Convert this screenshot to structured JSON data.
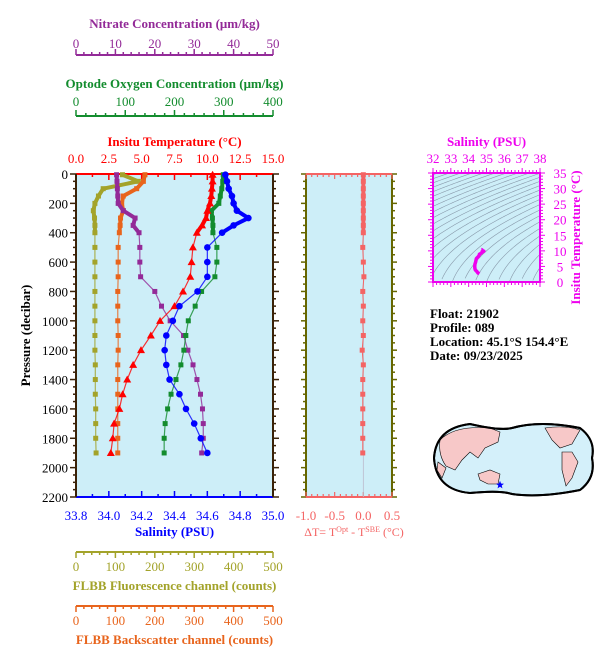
{
  "colors": {
    "temperature": "#ff0000",
    "salinity": "#0000ff",
    "oxygen": "#138c2e",
    "nitrate": "#932a98",
    "fluorescence": "#a3a32a",
    "backscatter": "#e8641c",
    "delta_t": "#f46464",
    "ts_inset": "#ee00ee",
    "plot_bg": "#cdeef8",
    "frame": "#3a2208",
    "delta_frame": "#666600",
    "land": "#f7c8c8",
    "ocean": "#d4f0fa"
  },
  "info": {
    "float": "Float:  21902",
    "profile": "Profile:  089",
    "location": "Location:  45.1°S  154.4°E",
    "date": "Date:  09/23/2025"
  },
  "chart_data": [
    {
      "type": "line",
      "ylabel": "Pressure (decibar)",
      "ylim": [
        2200,
        0
      ],
      "yticks": [
        "0",
        "200",
        "400",
        "600",
        "800",
        "1000",
        "1200",
        "1400",
        "1600",
        "1800",
        "2000",
        "2200"
      ],
      "grid": false,
      "pressure": [
        5,
        50,
        100,
        150,
        200,
        250,
        300,
        350,
        400,
        500,
        600,
        700,
        800,
        900,
        1000,
        1100,
        1200,
        1300,
        1400,
        1500,
        1600,
        1700,
        1800,
        1900
      ],
      "axes": {
        "nitrate": {
          "label": "Nitrate Concentration (μm/kg)",
          "range": [
            0,
            50
          ],
          "ticks": [
            "0",
            "10",
            "20",
            "30",
            "40",
            "50"
          ]
        },
        "oxygen": {
          "label": "Optode Oxygen Concentration (μm/kg)",
          "range": [
            0,
            400
          ],
          "ticks": [
            "0",
            "100",
            "200",
            "300",
            "400"
          ]
        },
        "temperature": {
          "label": "Insitu Temperature (°C)",
          "range": [
            0,
            15
          ],
          "ticks": [
            "0.0",
            "2.5",
            "5.0",
            "7.5",
            "10.0",
            "12.5",
            "15.0"
          ]
        },
        "salinity": {
          "label": "Salinity (PSU)",
          "range": [
            33.8,
            35.0
          ],
          "ticks": [
            "33.8",
            "34.0",
            "34.2",
            "34.4",
            "34.6",
            "34.8",
            "35.0"
          ]
        },
        "fluorescence": {
          "label": "FLBB Fluorescence channel (counts)",
          "range": [
            0,
            500
          ],
          "ticks": [
            "0",
            "100",
            "200",
            "300",
            "400",
            "500"
          ]
        },
        "backscatter": {
          "label": "FLBB Backscatter channel (counts)",
          "range": [
            0,
            500
          ],
          "ticks": [
            "0",
            "100",
            "200",
            "300",
            "400",
            "500"
          ]
        }
      },
      "series": {
        "temperature": [
          10.4,
          10.4,
          10.35,
          10.3,
          10.2,
          10.0,
          9.9,
          9.6,
          9.2,
          8.9,
          8.8,
          8.7,
          8.15,
          7.5,
          6.4,
          5.7,
          4.95,
          4.35,
          3.9,
          3.55,
          3.3,
          2.9,
          2.8,
          2.65
        ],
        "salinity": [
          34.71,
          34.72,
          34.73,
          34.75,
          34.76,
          34.78,
          34.85,
          34.76,
          34.69,
          34.6,
          34.6,
          34.6,
          34.54,
          34.43,
          34.39,
          34.35,
          34.34,
          34.35,
          34.37,
          34.43,
          34.47,
          34.52,
          34.56,
          34.6
        ],
        "oxygen": [
          299,
          298,
          296,
          293,
          290,
          275,
          277,
          278,
          278,
          286,
          286,
          282,
          255,
          242,
          228,
          223,
          219,
          213,
          203,
          193,
          186,
          181,
          179,
          179
        ],
        "nitrate": [
          10.3,
          10.4,
          10.5,
          10.6,
          10.7,
          12,
          15,
          14.5,
          16,
          16.2,
          16.2,
          16.4,
          20,
          21.7,
          23.9,
          27.3,
          28.4,
          29.7,
          30.7,
          31.6,
          32.1,
          32.3,
          32.3,
          31.9
        ],
        "fluorescence": [
          118,
          158,
          69,
          57,
          48,
          44,
          47,
          48,
          48,
          48,
          48,
          48,
          48,
          48,
          48,
          48,
          48,
          49,
          49,
          49,
          50,
          50,
          50,
          51
        ],
        "backscatter": [
          175,
          171,
          154,
          120,
          116,
          120,
          113,
          112,
          110,
          107,
          107,
          107,
          106,
          106,
          106,
          107,
          107,
          106,
          106,
          106,
          106,
          106,
          106,
          106
        ]
      }
    },
    {
      "type": "line",
      "xlabel": "ΔT= T",
      "xlabel_sup1": "Opt",
      "xlabel_mid": " - T",
      "xlabel_sup2": "SBE",
      "xlabel_end": " (°C)",
      "xlim": [
        -1.0,
        0.5
      ],
      "xticks": [
        "-1.0",
        "-0.5",
        "0.0",
        "0.5"
      ],
      "ylim": [
        2200,
        0
      ],
      "values": [
        0.0,
        0.0,
        0.0,
        0.0,
        0.0,
        0.0,
        0.0,
        0.0,
        0.0,
        -0.01,
        0.0,
        0.01,
        -0.01,
        0.0,
        -0.01,
        0.0,
        -0.02,
        0.0,
        -0.01,
        -0.01,
        -0.01,
        -0.01,
        -0.01,
        -0.01
      ]
    },
    {
      "type": "line",
      "xlabel": "Salinity (PSU)",
      "ylabel": "Insitu Temperature (°C)",
      "xlim": [
        32,
        38
      ],
      "ylim": [
        0,
        35
      ],
      "xticks": [
        "32",
        "33",
        "34",
        "35",
        "36",
        "37",
        "38"
      ],
      "yticks": [
        "0",
        "5",
        "10",
        "15",
        "20",
        "25",
        "30",
        "35"
      ]
    }
  ]
}
